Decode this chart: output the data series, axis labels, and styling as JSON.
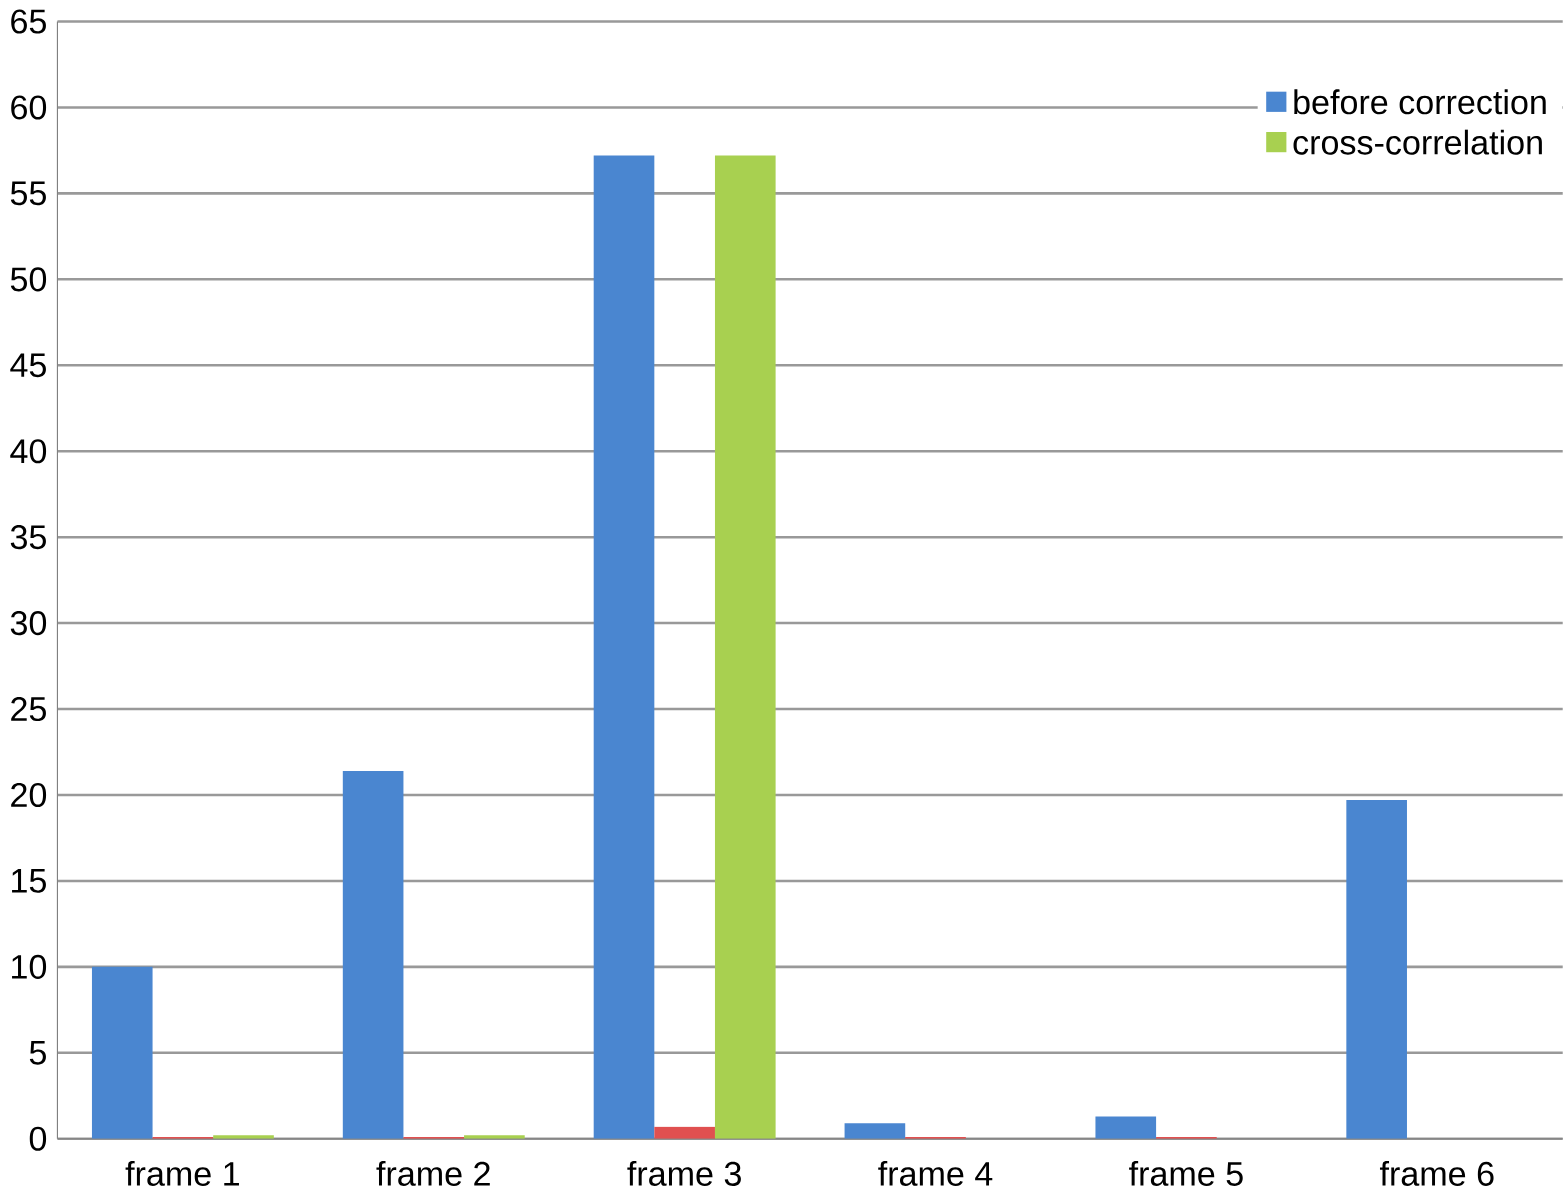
{
  "chart_data": {
    "type": "bar",
    "categories": [
      "frame 1",
      "frame 2",
      "frame 3",
      "frame 4",
      "frame 5",
      "frame 6"
    ],
    "series": [
      {
        "name": "before correction",
        "color": "#4a86d0",
        "values": [
          10,
          21.4,
          57.2,
          0.9,
          1.3,
          19.7
        ]
      },
      {
        "color": "#e05050",
        "values": [
          0.1,
          0.1,
          0.7,
          0.1,
          0.1,
          0
        ]
      },
      {
        "name": "cross-correlation",
        "color": "#a8d050",
        "values": [
          0.2,
          0.2,
          57.2,
          0,
          0,
          0
        ]
      }
    ],
    "ylim": [
      0,
      65
    ],
    "yticks": [
      0,
      5,
      10,
      15,
      20,
      25,
      30,
      35,
      40,
      45,
      50,
      55,
      60,
      65
    ],
    "grid": "y",
    "legend": "top right"
  }
}
